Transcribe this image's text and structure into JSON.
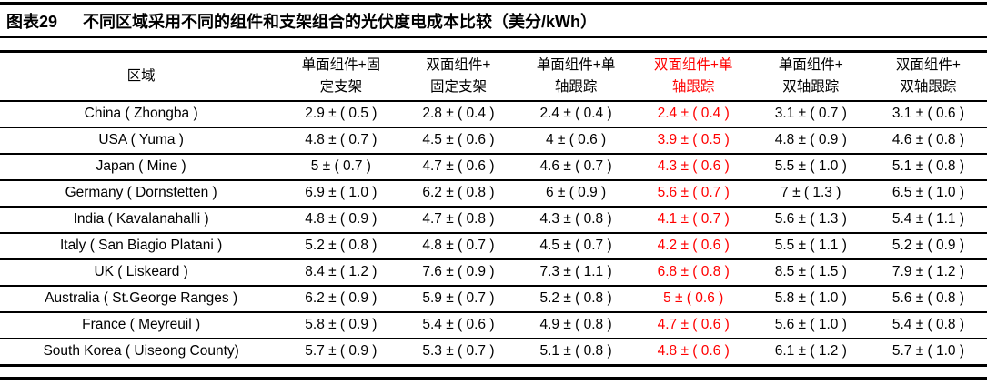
{
  "header": {
    "figure_label": "图表29",
    "title": "不同区域采用不同的组件和支架组合的光伏度电成本比较（美分/kWh）"
  },
  "colors": {
    "highlight_red": "#ff0000",
    "text": "#000000"
  },
  "table": {
    "region_header": "区域",
    "columns": [
      {
        "line1": "单面组件+固",
        "line2": "定支架",
        "label": "单面组件+固定支架",
        "highlight": false
      },
      {
        "line1": "双面组件+",
        "line2": "固定支架",
        "label": "双面组件+固定支架",
        "highlight": false
      },
      {
        "line1": "单面组件+单",
        "line2": "轴跟踪",
        "label": "单面组件+单轴跟踪",
        "highlight": false
      },
      {
        "line1": "双面组件+单",
        "line2": "轴跟踪",
        "label": "双面组件+单轴跟踪",
        "highlight": true
      },
      {
        "line1": "单面组件+",
        "line2": "双轴跟踪",
        "label": "单面组件+双轴跟踪",
        "highlight": false
      },
      {
        "line1": "双面组件+",
        "line2": "双轴跟踪",
        "label": "双面组件+双轴跟踪",
        "highlight": false
      }
    ],
    "rows": [
      {
        "region": "China ( Zhongba )",
        "values": [
          "2.9 ± ( 0.5 )",
          "2.8 ± ( 0.4 )",
          "2.4 ± ( 0.4 )",
          "2.4 ± ( 0.4 )",
          "3.1 ± ( 0.7 )",
          "3.1 ± ( 0.6 )"
        ]
      },
      {
        "region": "USA ( Yuma )",
        "values": [
          "4.8 ± ( 0.7 )",
          "4.5 ± ( 0.6 )",
          "4 ± ( 0.6 )",
          "3.9 ± ( 0.5 )",
          "4.8 ± ( 0.9 )",
          "4.6 ± ( 0.8 )"
        ]
      },
      {
        "region": "Japan ( Mine )",
        "values": [
          "5 ± ( 0.7 )",
          "4.7 ± ( 0.6 )",
          "4.6 ± ( 0.7 )",
          "4.3 ± ( 0.6 )",
          "5.5 ± ( 1.0 )",
          "5.1 ± ( 0.8 )"
        ]
      },
      {
        "region": "Germany ( Dornstetten )",
        "values": [
          "6.9 ± ( 1.0 )",
          "6.2 ± ( 0.8 )",
          "6 ± ( 0.9 )",
          "5.6 ± ( 0.7 )",
          "7 ± ( 1.3 )",
          "6.5 ± ( 1.0 )"
        ]
      },
      {
        "region": "India ( Kavalanahalli )",
        "values": [
          "4.8 ± ( 0.9 )",
          "4.7 ± ( 0.8 )",
          "4.3 ± ( 0.8 )",
          "4.1 ± ( 0.7 )",
          "5.6 ± ( 1.3 )",
          "5.4 ± ( 1.1 )"
        ]
      },
      {
        "region": "Italy ( San Biagio Platani )",
        "values": [
          "5.2 ± ( 0.8 )",
          "4.8 ± ( 0.7 )",
          "4.5 ± ( 0.7 )",
          "4.2 ± ( 0.6 )",
          "5.5 ± ( 1.1 )",
          "5.2 ± ( 0.9 )"
        ]
      },
      {
        "region": "UK ( Liskeard )",
        "values": [
          "8.4 ± ( 1.2 )",
          "7.6 ± ( 0.9 )",
          "7.3 ± ( 1.1 )",
          "6.8 ± ( 0.8 )",
          "8.5 ± ( 1.5 )",
          "7.9 ± ( 1.2 )"
        ]
      },
      {
        "region": "Australia ( St.George Ranges )",
        "values": [
          "6.2 ± ( 0.9 )",
          "5.9 ± ( 0.7 )",
          "5.2 ± ( 0.8 )",
          "5 ± ( 0.6 )",
          "5.8 ± ( 1.0 )",
          "5.6 ± ( 0.8 )"
        ]
      },
      {
        "region": "France ( Meyreuil )",
        "values": [
          "5.8 ± ( 0.9 )",
          "5.4 ± ( 0.6 )",
          "4.9 ± ( 0.8 )",
          "4.7 ± ( 0.6 )",
          "5.6 ± ( 1.0 )",
          "5.4 ± ( 0.8 )"
        ]
      },
      {
        "region": "South Korea ( Uiseong County)",
        "values": [
          "5.7 ± ( 0.9 )",
          "5.3 ± ( 0.7 )",
          "5.1 ± ( 0.8 )",
          "4.8 ± ( 0.6 )",
          "6.1 ± ( 1.2 )",
          "5.7 ± ( 1.0 )"
        ]
      }
    ]
  },
  "chart_data": {
    "type": "table",
    "title": "不同区域采用不同的组件和支架组合的光伏度电成本比较",
    "unit": "美分/kWh",
    "row_header": "区域",
    "columns": [
      "单面组件+固定支架",
      "双面组件+固定支架",
      "单面组件+单轴跟踪",
      "双面组件+单轴跟踪",
      "单面组件+双轴跟踪",
      "双面组件+双轴跟踪"
    ],
    "highlighted_column": "双面组件+单轴跟踪",
    "rows": [
      {
        "region": "China (Zhongba)",
        "mean": [
          2.9,
          2.8,
          2.4,
          2.4,
          3.1,
          3.1
        ],
        "pm": [
          0.5,
          0.4,
          0.4,
          0.4,
          0.7,
          0.6
        ]
      },
      {
        "region": "USA (Yuma)",
        "mean": [
          4.8,
          4.5,
          4,
          3.9,
          4.8,
          4.6
        ],
        "pm": [
          0.7,
          0.6,
          0.6,
          0.5,
          0.9,
          0.8
        ]
      },
      {
        "region": "Japan (Mine)",
        "mean": [
          5,
          4.7,
          4.6,
          4.3,
          5.5,
          5.1
        ],
        "pm": [
          0.7,
          0.6,
          0.7,
          0.6,
          1.0,
          0.8
        ]
      },
      {
        "region": "Germany (Dornstetten)",
        "mean": [
          6.9,
          6.2,
          6,
          5.6,
          7,
          6.5
        ],
        "pm": [
          1.0,
          0.8,
          0.9,
          0.7,
          1.3,
          1.0
        ]
      },
      {
        "region": "India (Kavalanahalli)",
        "mean": [
          4.8,
          4.7,
          4.3,
          4.1,
          5.6,
          5.4
        ],
        "pm": [
          0.9,
          0.8,
          0.8,
          0.7,
          1.3,
          1.1
        ]
      },
      {
        "region": "Italy (San Biagio Platani)",
        "mean": [
          5.2,
          4.8,
          4.5,
          4.2,
          5.5,
          5.2
        ],
        "pm": [
          0.8,
          0.7,
          0.7,
          0.6,
          1.1,
          0.9
        ]
      },
      {
        "region": "UK (Liskeard)",
        "mean": [
          8.4,
          7.6,
          7.3,
          6.8,
          8.5,
          7.9
        ],
        "pm": [
          1.2,
          0.9,
          1.1,
          0.8,
          1.5,
          1.2
        ]
      },
      {
        "region": "Australia (St.George Ranges)",
        "mean": [
          6.2,
          5.9,
          5.2,
          5,
          5.8,
          5.6
        ],
        "pm": [
          0.9,
          0.7,
          0.8,
          0.6,
          1.0,
          0.8
        ]
      },
      {
        "region": "France (Meyreuil)",
        "mean": [
          5.8,
          5.4,
          4.9,
          4.7,
          5.6,
          5.4
        ],
        "pm": [
          0.9,
          0.6,
          0.8,
          0.6,
          1.0,
          0.8
        ]
      },
      {
        "region": "South Korea (Uiseong County)",
        "mean": [
          5.7,
          5.3,
          5.1,
          4.8,
          6.1,
          5.7
        ],
        "pm": [
          0.9,
          0.7,
          0.8,
          0.6,
          1.2,
          1.0
        ]
      }
    ]
  }
}
